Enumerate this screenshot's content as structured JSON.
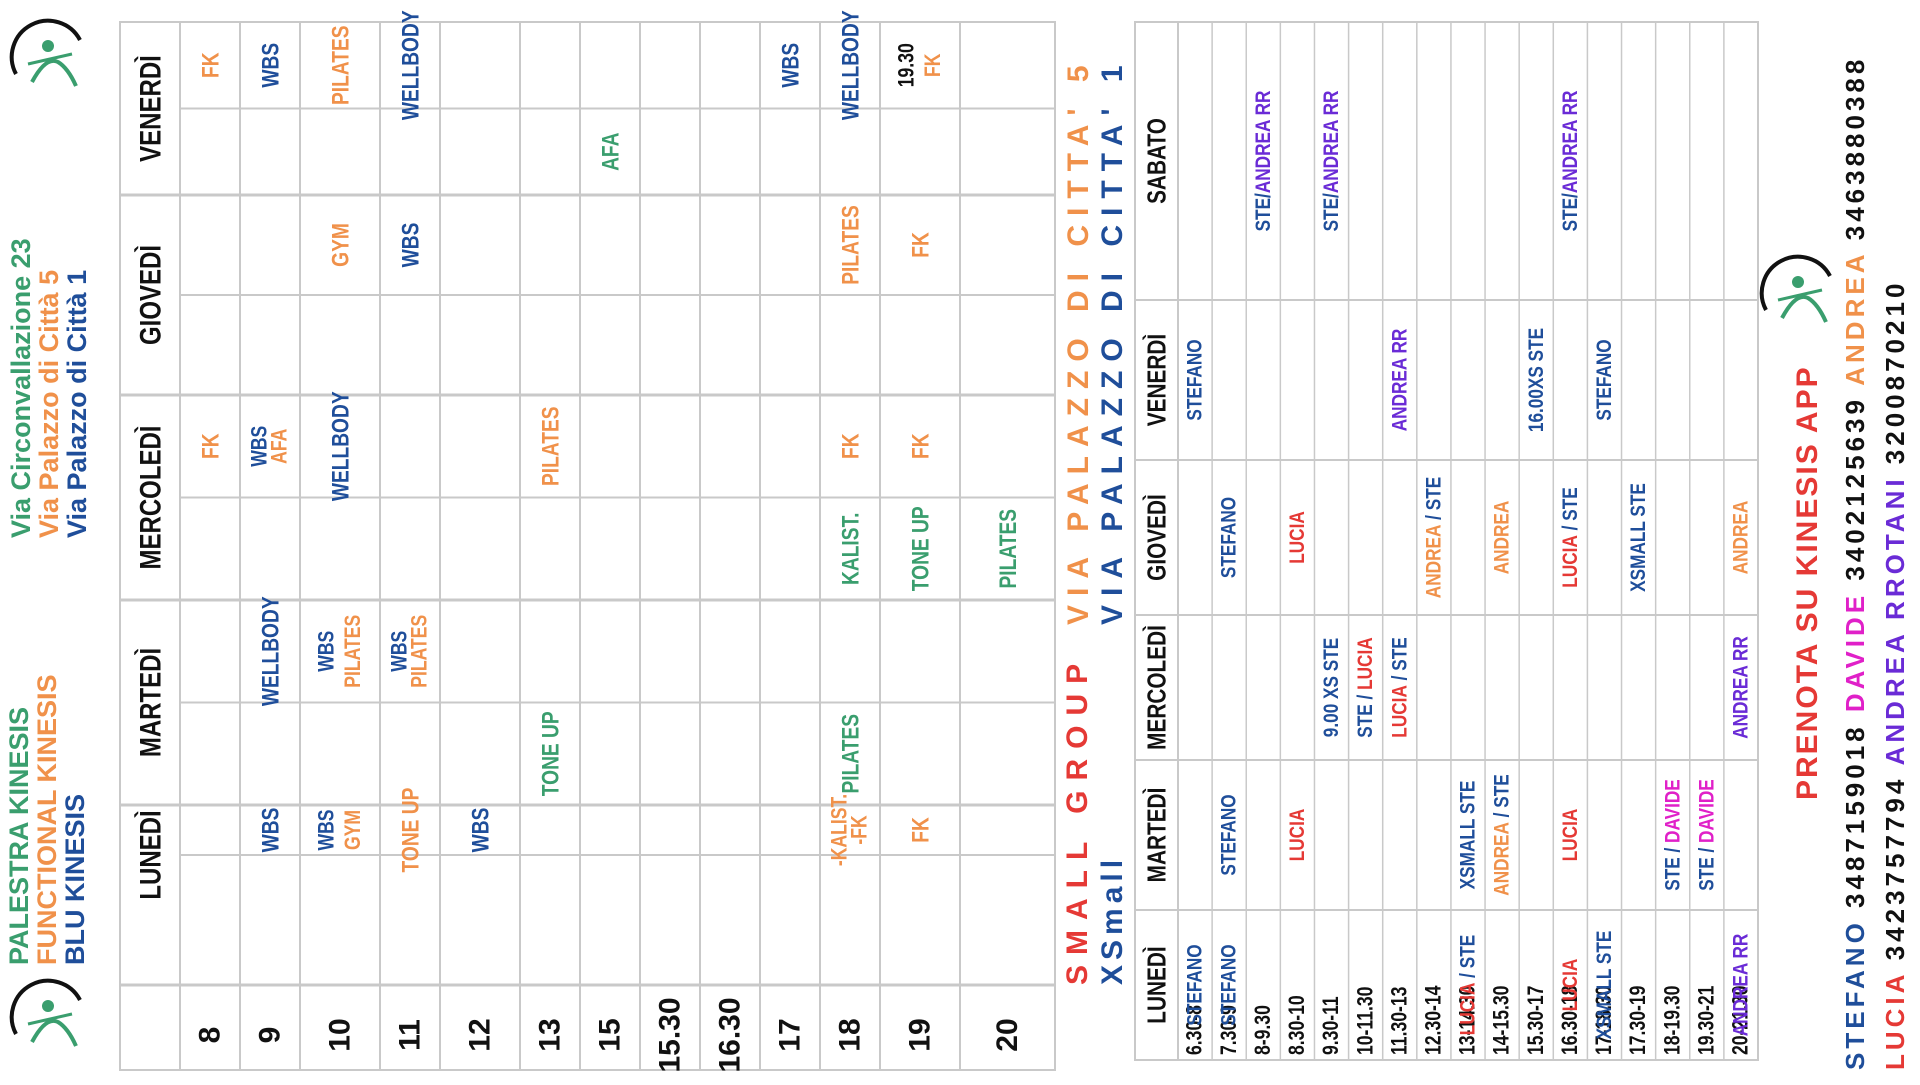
{
  "header": {
    "name_lines": [
      "PALESTRA KINESIS",
      "FUNCTIONAL KINESIS",
      "BLU KINESIS"
    ],
    "address_lines": [
      "Via Circonvallazione 23",
      "Via Palazzo di Città 5",
      "Via Palazzo di Città 1"
    ]
  },
  "colors": {
    "green": "#3a9e6e",
    "orange": "#f0914a",
    "blue": "#1f4e9a",
    "red": "#e53935",
    "purple": "#6a2bd6",
    "magenta": "#e020c8",
    "grid": "#c9c9c9",
    "dark": "#111111"
  },
  "schedule1": {
    "days": [
      "LUNEDÌ",
      "MARTEDÌ",
      "MERCOLEDÌ",
      "GIOVEDÌ",
      "VENERDÌ"
    ],
    "hours": [
      "8",
      "9",
      "10",
      "11",
      "12",
      "13",
      "15",
      "15.30",
      "16.30",
      "17",
      "18",
      "19",
      "20"
    ],
    "cells": [
      {
        "hour": 0,
        "day": 2,
        "sub": 1,
        "lines": [
          {
            "t": "FK",
            "c": "orange"
          }
        ]
      },
      {
        "hour": 0,
        "day": 4,
        "sub": 1,
        "lines": [
          {
            "t": "FK",
            "c": "orange"
          }
        ]
      },
      {
        "hour": 1,
        "day": 0,
        "sub": 1,
        "lines": [
          {
            "t": "WBS",
            "c": "blue"
          }
        ]
      },
      {
        "hour": 1,
        "day": 1,
        "sub": 1,
        "lines": [
          {
            "t": "WELLBODY",
            "c": "blue"
          }
        ]
      },
      {
        "hour": 1,
        "day": 2,
        "sub": 1,
        "lines": [
          {
            "t": "WBS",
            "c": "blue"
          },
          {
            "t": "AFA",
            "c": "orange"
          }
        ]
      },
      {
        "hour": 1,
        "day": 4,
        "sub": 1,
        "lines": [
          {
            "t": "WBS",
            "c": "blue"
          }
        ]
      },
      {
        "hour": 2,
        "day": 0,
        "sub": 1,
        "lines": [
          {
            "t": "WBS",
            "c": "blue"
          },
          {
            "t": "GYM",
            "c": "orange"
          }
        ]
      },
      {
        "hour": 2,
        "day": 1,
        "sub": 1,
        "lines": [
          {
            "t": "WBS",
            "c": "blue"
          },
          {
            "t": "PILATES",
            "c": "orange"
          }
        ]
      },
      {
        "hour": 2,
        "day": 2,
        "sub": 1,
        "lines": [
          {
            "t": "WELLBODY",
            "c": "blue"
          }
        ]
      },
      {
        "hour": 2,
        "day": 3,
        "sub": 1,
        "lines": [
          {
            "t": "GYM",
            "c": "orange"
          }
        ]
      },
      {
        "hour": 2,
        "day": 4,
        "sub": 1,
        "lines": [
          {
            "t": "PILATES",
            "c": "orange"
          }
        ]
      },
      {
        "hour": 3,
        "day": 0,
        "sub": 1,
        "lines": [
          {
            "t": "TONE UP",
            "c": "orange"
          }
        ]
      },
      {
        "hour": 3,
        "day": 1,
        "sub": 1,
        "lines": [
          {
            "t": "WBS",
            "c": "blue"
          },
          {
            "t": "PILATES",
            "c": "orange"
          }
        ]
      },
      {
        "hour": 3,
        "day": 3,
        "sub": 1,
        "lines": [
          {
            "t": "WBS",
            "c": "blue"
          }
        ]
      },
      {
        "hour": 3,
        "day": 4,
        "sub": 1,
        "lines": [
          {
            "t": "WELLBODY",
            "c": "blue"
          }
        ]
      },
      {
        "hour": 4,
        "day": 0,
        "sub": 1,
        "lines": [
          {
            "t": "WBS",
            "c": "blue"
          }
        ]
      },
      {
        "hour": 5,
        "day": 1,
        "sub": 0,
        "lines": [
          {
            "t": "TONE UP",
            "c": "green"
          }
        ]
      },
      {
        "hour": 5,
        "day": 2,
        "sub": 1,
        "lines": [
          {
            "t": "PILATES",
            "c": "orange"
          }
        ]
      },
      {
        "hour": 6,
        "day": 4,
        "sub": 0,
        "lines": [
          {
            "t": "AFA",
            "c": "green"
          }
        ]
      },
      {
        "hour": 9,
        "day": 4,
        "sub": 1,
        "lines": [
          {
            "t": "WBS",
            "c": "blue"
          }
        ]
      },
      {
        "hour": 10,
        "day": 0,
        "sub": 1,
        "lines": [
          {
            "t": "-KALIST.",
            "c": "orange"
          },
          {
            "t": "-FK",
            "c": "orange"
          }
        ]
      },
      {
        "hour": 10,
        "day": 1,
        "sub": 0,
        "lines": [
          {
            "t": "PILATES",
            "c": "green"
          }
        ]
      },
      {
        "hour": 10,
        "day": 2,
        "sub": 0,
        "lines": [
          {
            "t": "KALIST.",
            "c": "green"
          }
        ]
      },
      {
        "hour": 10,
        "day": 2,
        "sub": 1,
        "lines": [
          {
            "t": "FK",
            "c": "orange"
          }
        ]
      },
      {
        "hour": 10,
        "day": 3,
        "sub": 1,
        "lines": [
          {
            "t": "PILATES",
            "c": "orange"
          }
        ]
      },
      {
        "hour": 10,
        "day": 4,
        "sub": 1,
        "lines": [
          {
            "t": "WELLBODY",
            "c": "blue"
          }
        ]
      },
      {
        "hour": 11,
        "day": 0,
        "sub": 1,
        "lines": [
          {
            "t": "FK",
            "c": "orange"
          }
        ]
      },
      {
        "hour": 11,
        "day": 2,
        "sub": 0,
        "lines": [
          {
            "t": "TONE UP",
            "c": "green"
          }
        ]
      },
      {
        "hour": 11,
        "day": 2,
        "sub": 1,
        "lines": [
          {
            "t": "FK",
            "c": "orange"
          }
        ]
      },
      {
        "hour": 11,
        "day": 3,
        "sub": 1,
        "lines": [
          {
            "t": "FK",
            "c": "orange"
          }
        ]
      },
      {
        "hour": 11,
        "day": 4,
        "sub": 1,
        "lines": [
          {
            "t": "19.30",
            "c": "dark"
          },
          {
            "t": "FK",
            "c": "orange"
          }
        ]
      },
      {
        "hour": 12,
        "day": 2,
        "sub": 0,
        "lines": [
          {
            "t": "PILATES",
            "c": "green"
          }
        ]
      }
    ]
  },
  "small_group": {
    "title_lines": [
      "SMALL GROUP",
      "XSmall"
    ],
    "address_lines": [
      "VIA PALAZZO DI CITTA' 5",
      "VIA PALAZZO DI CITTA' 1"
    ],
    "days": [
      "LUNEDÌ",
      "MARTEDÌ",
      "MERCOLEDÌ",
      "GIOVEDÌ",
      "VENERDÌ",
      "SABATO"
    ],
    "slots": [
      "6.30-8",
      "7.30-9",
      "8-9.30",
      "8.30-10",
      "9.30-11",
      "10-11.30",
      "11.30-13",
      "12.30-14",
      "13-14.30",
      "14-15.30",
      "15.30-17",
      "16.30-18",
      "17-18.30",
      "17.30-19",
      "18-19.30",
      "19.30-21",
      "20-21.30"
    ],
    "cells": [
      {
        "slot": 0,
        "day": 0,
        "parts": [
          {
            "t": "STEFANO",
            "c": "blue"
          }
        ]
      },
      {
        "slot": 0,
        "day": 4,
        "parts": [
          {
            "t": "STEFANO",
            "c": "blue"
          }
        ]
      },
      {
        "slot": 1,
        "day": 0,
        "parts": [
          {
            "t": "STEFANO",
            "c": "blue"
          }
        ]
      },
      {
        "slot": 1,
        "day": 1,
        "parts": [
          {
            "t": "STEFANO",
            "c": "blue"
          }
        ]
      },
      {
        "slot": 1,
        "day": 3,
        "parts": [
          {
            "t": "STEFANO",
            "c": "blue"
          }
        ]
      },
      {
        "slot": 2,
        "day": 5,
        "parts": [
          {
            "t": "STE/",
            "c": "blue"
          },
          {
            "t": "ANDREA RR",
            "c": "purple"
          }
        ]
      },
      {
        "slot": 3,
        "day": 1,
        "parts": [
          {
            "t": "LUCIA",
            "c": "red"
          }
        ]
      },
      {
        "slot": 3,
        "day": 3,
        "parts": [
          {
            "t": "LUCIA",
            "c": "red"
          }
        ]
      },
      {
        "slot": 4,
        "day": 2,
        "parts": [
          {
            "t": "9.00  XS  STE",
            "c": "blue"
          }
        ]
      },
      {
        "slot": 4,
        "day": 5,
        "parts": [
          {
            "t": "STE/",
            "c": "blue"
          },
          {
            "t": "ANDREA RR",
            "c": "purple"
          }
        ]
      },
      {
        "slot": 5,
        "day": 2,
        "parts": [
          {
            "t": "STE / ",
            "c": "blue"
          },
          {
            "t": "LUCIA",
            "c": "red"
          }
        ]
      },
      {
        "slot": 6,
        "day": 2,
        "parts": [
          {
            "t": "LUCIA",
            "c": "red"
          },
          {
            "t": " / STE",
            "c": "blue"
          }
        ]
      },
      {
        "slot": 6,
        "day": 4,
        "parts": [
          {
            "t": "ANDREA RR",
            "c": "purple"
          }
        ]
      },
      {
        "slot": 7,
        "day": 3,
        "parts": [
          {
            "t": "ANDREA",
            "c": "orange"
          },
          {
            "t": " / STE",
            "c": "blue"
          }
        ]
      },
      {
        "slot": 8,
        "day": 0,
        "parts": [
          {
            "t": "LUCIA",
            "c": "red"
          },
          {
            "t": " / STE",
            "c": "blue"
          }
        ]
      },
      {
        "slot": 8,
        "day": 1,
        "parts": [
          {
            "t": "XSMALL STE",
            "c": "blue"
          }
        ]
      },
      {
        "slot": 9,
        "day": 1,
        "parts": [
          {
            "t": "ANDREA",
            "c": "orange"
          },
          {
            "t": " / STE",
            "c": "blue"
          }
        ]
      },
      {
        "slot": 9,
        "day": 3,
        "parts": [
          {
            "t": "ANDREA",
            "c": "orange"
          }
        ]
      },
      {
        "slot": 10,
        "day": 4,
        "parts": [
          {
            "t": "16.00XS  STE",
            "c": "blue"
          }
        ]
      },
      {
        "slot": 11,
        "day": 0,
        "parts": [
          {
            "t": "LUCIA",
            "c": "red"
          }
        ]
      },
      {
        "slot": 11,
        "day": 1,
        "parts": [
          {
            "t": "LUCIA",
            "c": "red"
          }
        ]
      },
      {
        "slot": 11,
        "day": 3,
        "parts": [
          {
            "t": "LUCIA",
            "c": "red"
          },
          {
            "t": " / STE",
            "c": "blue"
          }
        ]
      },
      {
        "slot": 11,
        "day": 5,
        "parts": [
          {
            "t": "STE/",
            "c": "blue"
          },
          {
            "t": "ANDREA RR",
            "c": "purple"
          }
        ]
      },
      {
        "slot": 12,
        "day": 0,
        "parts": [
          {
            "t": "XSMALL STE",
            "c": "blue"
          }
        ]
      },
      {
        "slot": 12,
        "day": 4,
        "parts": [
          {
            "t": "STEFANO",
            "c": "blue"
          }
        ]
      },
      {
        "slot": 13,
        "day": 3,
        "parts": [
          {
            "t": "XSMALL STE",
            "c": "blue"
          }
        ]
      },
      {
        "slot": 14,
        "day": 1,
        "parts": [
          {
            "t": "STE / ",
            "c": "blue"
          },
          {
            "t": "DAVIDE",
            "c": "magenta"
          }
        ]
      },
      {
        "slot": 15,
        "day": 1,
        "parts": [
          {
            "t": "STE / ",
            "c": "blue"
          },
          {
            "t": "DAVIDE",
            "c": "magenta"
          }
        ]
      },
      {
        "slot": 16,
        "day": 0,
        "parts": [
          {
            "t": "ANDREA RR",
            "c": "purple"
          }
        ]
      },
      {
        "slot": 16,
        "day": 2,
        "parts": [
          {
            "t": "ANDREA RR",
            "c": "purple"
          }
        ]
      },
      {
        "slot": 16,
        "day": 3,
        "parts": [
          {
            "t": "ANDREA",
            "c": "orange"
          }
        ]
      }
    ]
  },
  "booking": {
    "app_text": "PRENOTA SU KINESIS APP",
    "contacts_row1": [
      {
        "name": "STEFANO",
        "phone": "3487159018",
        "c": "blue"
      },
      {
        "name": "DAVIDE",
        "phone": "3402125639",
        "c": "magenta"
      },
      {
        "name": "ANDREA",
        "phone": "3463880388",
        "c": "orange"
      }
    ],
    "contacts_row2": [
      {
        "name": "LUCIA",
        "phone": "3423757794",
        "c": "red"
      },
      {
        "name": "ANDREA RROTANI",
        "phone": "3200870210",
        "c": "purple"
      }
    ]
  }
}
